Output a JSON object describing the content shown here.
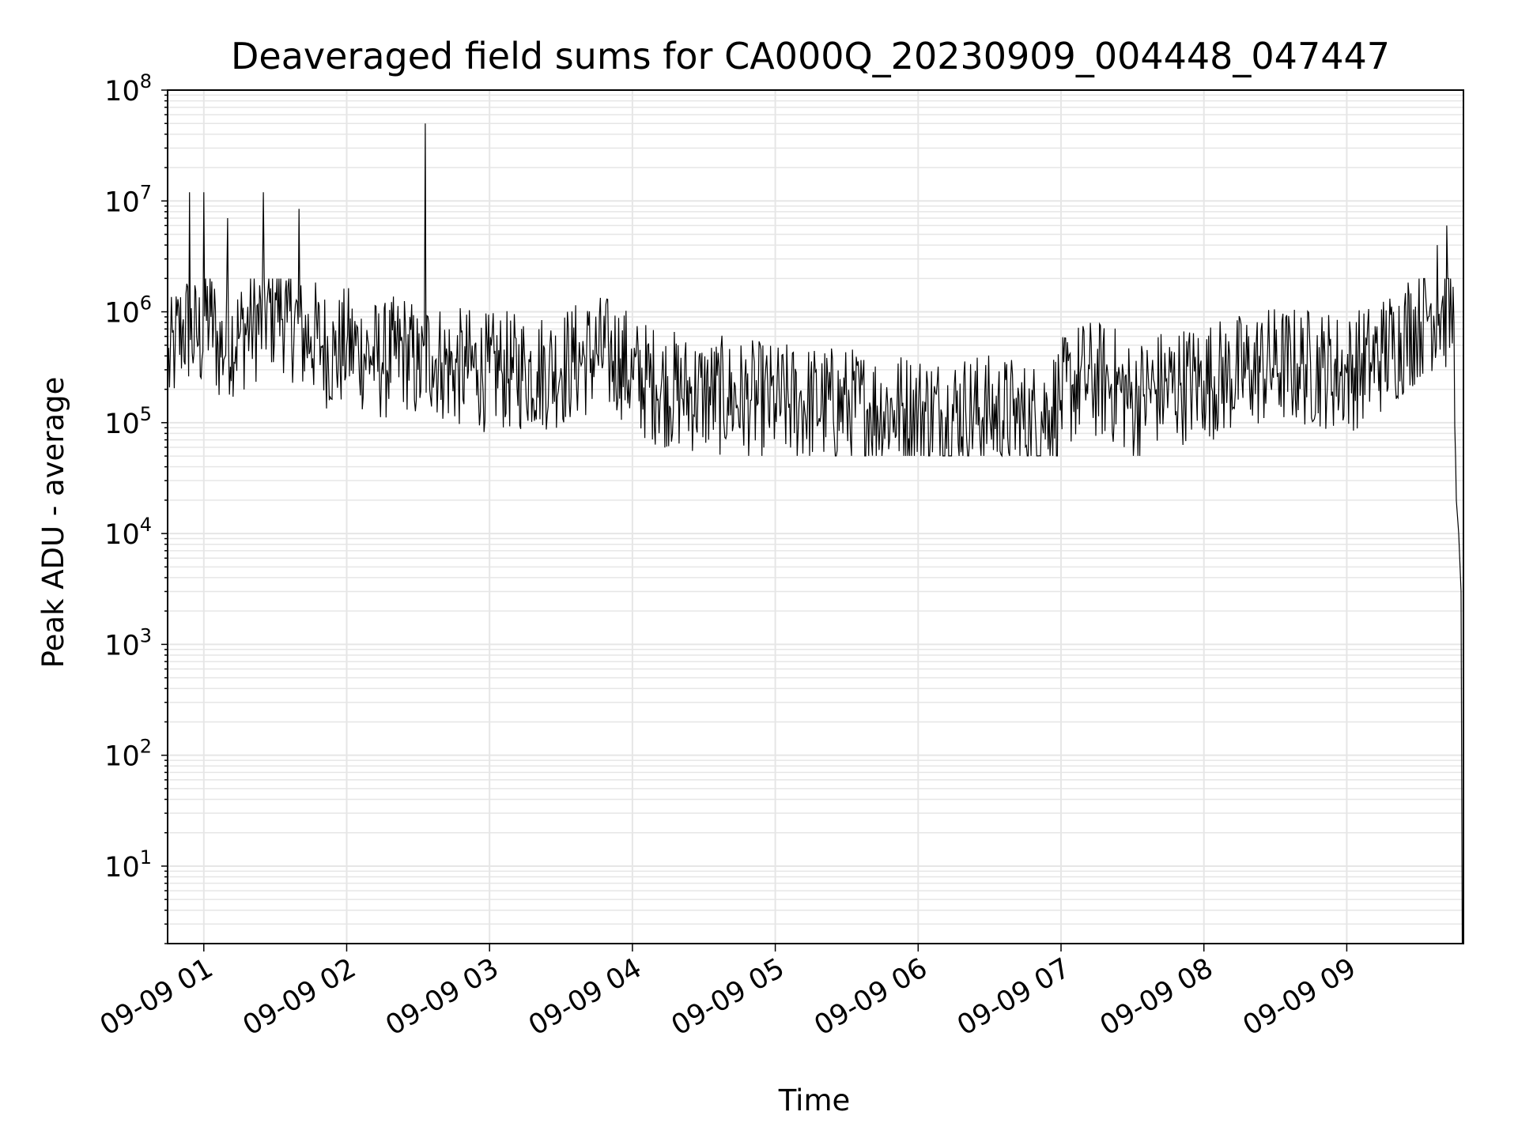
{
  "chart_data": {
    "type": "line",
    "title": "Deaveraged field sums for CA000Q_20230909_004448_047447",
    "xlabel": "Time",
    "ylabel": "Peak ADU - average",
    "yscale": "log",
    "ylim": [
      2,
      100000000
    ],
    "y_ticks": [
      {
        "value": 10,
        "base": "10",
        "exp": "1"
      },
      {
        "value": 100,
        "base": "10",
        "exp": "2"
      },
      {
        "value": 1000,
        "base": "10",
        "exp": "3"
      },
      {
        "value": 10000,
        "base": "10",
        "exp": "4"
      },
      {
        "value": 100000,
        "base": "10",
        "exp": "5"
      },
      {
        "value": 1000000,
        "base": "10",
        "exp": "6"
      },
      {
        "value": 10000000,
        "base": "10",
        "exp": "7"
      },
      {
        "value": 100000000,
        "base": "10",
        "exp": "8"
      }
    ],
    "xlim": [
      "2023-09-09 00:44:48",
      "2023-09-09 09:49:00"
    ],
    "x_ticks": [
      {
        "value": "2023-09-09 01:00",
        "label": "09-09 01"
      },
      {
        "value": "2023-09-09 02:00",
        "label": "09-09 02"
      },
      {
        "value": "2023-09-09 03:00",
        "label": "09-09 03"
      },
      {
        "value": "2023-09-09 04:00",
        "label": "09-09 04"
      },
      {
        "value": "2023-09-09 05:00",
        "label": "09-09 05"
      },
      {
        "value": "2023-09-09 06:00",
        "label": "09-09 06"
      },
      {
        "value": "2023-09-09 07:00",
        "label": "09-09 07"
      },
      {
        "value": "2023-09-09 08:00",
        "label": "09-09 08"
      },
      {
        "value": "2023-09-09 09:00",
        "label": "09-09 09"
      }
    ],
    "grid": true,
    "line_color": "#000000",
    "grid_color": "#e6e6e6",
    "series": [
      {
        "x": [
          "2023-09-09 00:44:48",
          "2023-09-09 00:48:00",
          "2023-09-09 00:51:00",
          "2023-09-09 00:54:00",
          "2023-09-09 00:57:00",
          "2023-09-09 01:00:00",
          "2023-09-09 01:03:00",
          "2023-09-09 01:06:00",
          "2023-09-09 01:10:00",
          "2023-09-09 01:15:00",
          "2023-09-09 01:20:00",
          "2023-09-09 01:25:00",
          "2023-09-09 01:30:00",
          "2023-09-09 01:35:00",
          "2023-09-09 01:40:00",
          "2023-09-09 01:45:00",
          "2023-09-09 01:50:00",
          "2023-09-09 01:55:00",
          "2023-09-09 02:00:00",
          "2023-09-09 02:05:00",
          "2023-09-09 02:10:00",
          "2023-09-09 02:15:00",
          "2023-09-09 02:20:00",
          "2023-09-09 02:25:00",
          "2023-09-09 02:30:00",
          "2023-09-09 02:33:00",
          "2023-09-09 02:36:00",
          "2023-09-09 02:40:00",
          "2023-09-09 02:45:00",
          "2023-09-09 02:50:00",
          "2023-09-09 02:55:00",
          "2023-09-09 03:00:00",
          "2023-09-09 03:05:00",
          "2023-09-09 03:10:00",
          "2023-09-09 03:15:00",
          "2023-09-09 03:20:00",
          "2023-09-09 03:25:00",
          "2023-09-09 03:30:00",
          "2023-09-09 03:35:00",
          "2023-09-09 03:40:00",
          "2023-09-09 03:45:00",
          "2023-09-09 03:50:00",
          "2023-09-09 03:55:00",
          "2023-09-09 04:00:00",
          "2023-09-09 04:10:00",
          "2023-09-09 04:20:00",
          "2023-09-09 04:30:00",
          "2023-09-09 04:40:00",
          "2023-09-09 04:50:00",
          "2023-09-09 05:00:00",
          "2023-09-09 05:10:00",
          "2023-09-09 05:20:00",
          "2023-09-09 05:30:00",
          "2023-09-09 05:40:00",
          "2023-09-09 05:50:00",
          "2023-09-09 06:00:00",
          "2023-09-09 06:10:00",
          "2023-09-09 06:20:00",
          "2023-09-09 06:30:00",
          "2023-09-09 06:40:00",
          "2023-09-09 06:47:00",
          "2023-09-09 06:55:00",
          "2023-09-09 07:00:00",
          "2023-09-09 07:05:00",
          "2023-09-09 07:10:00",
          "2023-09-09 07:15:00",
          "2023-09-09 07:20:00",
          "2023-09-09 07:25:00",
          "2023-09-09 07:30:00",
          "2023-09-09 07:35:00",
          "2023-09-09 07:40:00",
          "2023-09-09 07:50:00",
          "2023-09-09 08:00:00",
          "2023-09-09 08:10:00",
          "2023-09-09 08:20:00",
          "2023-09-09 08:30:00",
          "2023-09-09 08:40:00",
          "2023-09-09 08:50:00",
          "2023-09-09 09:00:00",
          "2023-09-09 09:10:00",
          "2023-09-09 09:15:00",
          "2023-09-09 09:20:00",
          "2023-09-09 09:25:00",
          "2023-09-09 09:30:00",
          "2023-09-09 09:35:00",
          "2023-09-09 09:38:00",
          "2023-09-09 09:40:00",
          "2023-09-09 09:42:00",
          "2023-09-09 09:44:00",
          "2023-09-09 09:45:00",
          "2023-09-09 09:46:00",
          "2023-09-09 09:47:00",
          "2023-09-09 09:48:00"
        ],
        "y": [
          300000,
          500000,
          700000,
          12000000,
          600000,
          12000000,
          900000,
          500000,
          7000000,
          600000,
          800000,
          12000000,
          1500000,
          800000,
          8500000,
          600000,
          500000,
          400000,
          500000,
          450000,
          400000,
          350000,
          400000,
          450000,
          300000,
          50000000,
          400000,
          350000,
          300000,
          320000,
          300000,
          280000,
          300000,
          280000,
          300000,
          290000,
          300000,
          310000,
          350000,
          380000,
          420000,
          400000,
          380000,
          260000,
          220000,
          190000,
          180000,
          170000,
          160000,
          150000,
          150000,
          145000,
          140000,
          135000,
          130000,
          125000,
          120000,
          125000,
          120000,
          115000,
          100000,
          130000,
          160000,
          220000,
          250000,
          240000,
          230000,
          200000,
          150000,
          180000,
          200000,
          220000,
          240000,
          260000,
          300000,
          330000,
          320000,
          310000,
          280000,
          350000,
          420000,
          500000,
          650000,
          800000,
          1100000,
          4000000,
          1200000,
          6000000,
          900000,
          800000,
          20000,
          10000,
          3000
        ]
      }
    ]
  }
}
